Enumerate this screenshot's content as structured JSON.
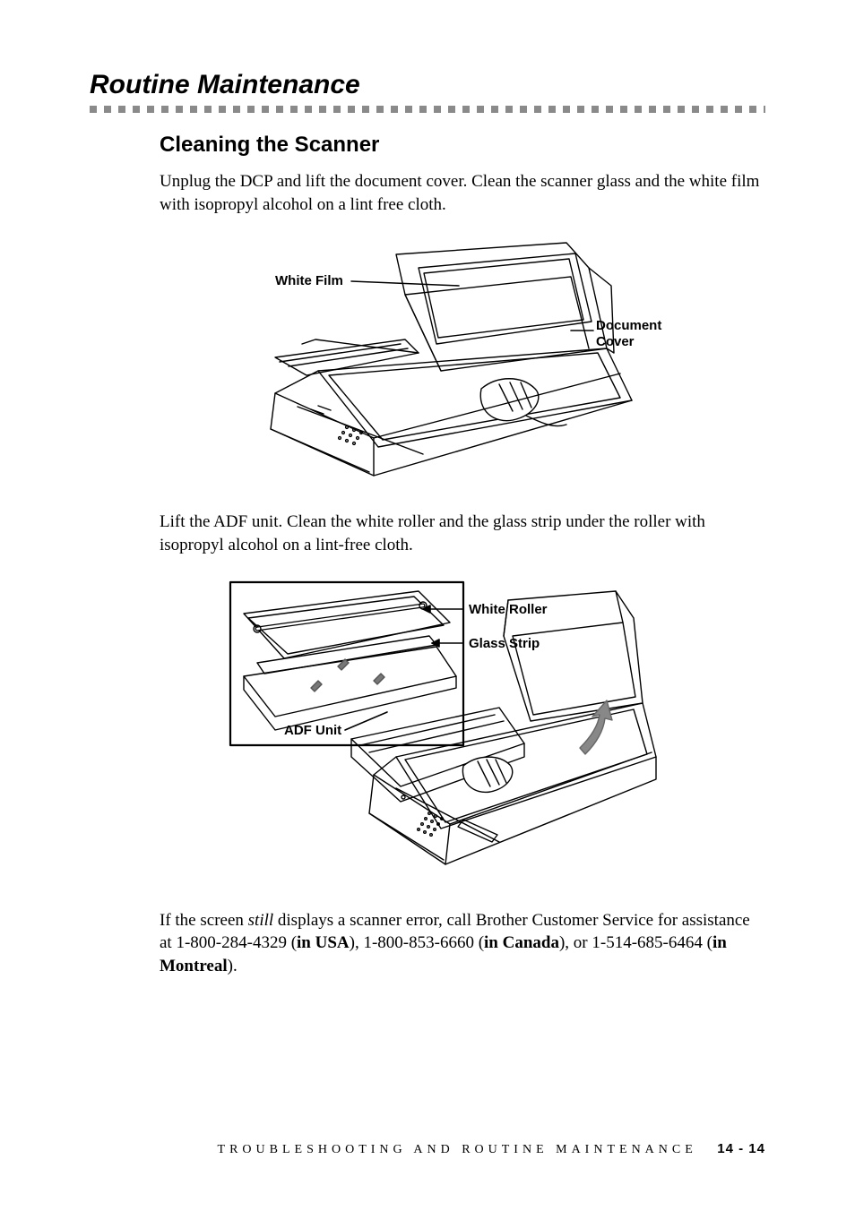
{
  "section_title": "Routine Maintenance",
  "subsection_title": "Cleaning the Scanner",
  "paragraphs": {
    "p1": "Unplug the DCP and lift the document cover. Clean the scanner glass and the white film with isopropyl alcohol on a lint free cloth.",
    "p2": "Lift the ADF unit. Clean the white roller and the glass strip under the roller with isopropyl alcohol on a lint-free cloth.",
    "p3_a": "If the screen ",
    "p3_still": "still",
    "p3_b": " displays a scanner error, call Brother Customer Service for assistance at 1-800-284-4329 (",
    "p3_usa": "in USA",
    "p3_c": "), 1-800-853-6660 (",
    "p3_can": "in Canada",
    "p3_d": "), or 1-514-685-6464 (",
    "p3_mon": "in Montreal",
    "p3_e": ")."
  },
  "figure1": {
    "callouts": {
      "white_film": "White Film",
      "document_cover": "Document\nCover"
    },
    "style": {
      "stroke": "#000000",
      "stroke_width": 1.4,
      "arrow_stroke_width": 1.6,
      "fill": "none",
      "label_fontsize": 15
    }
  },
  "figure2": {
    "callouts": {
      "white_roller": "White Roller",
      "glass_strip": "Glass Strip",
      "adf_unit": "ADF Unit"
    },
    "style": {
      "stroke": "#000000",
      "stroke_width": 1.4,
      "arrow_stroke_width": 1.6,
      "fill": "none",
      "label_fontsize": 15
    }
  },
  "footer": {
    "text": "TROUBLESHOOTING AND ROUTINE MAINTENANCE",
    "page_num": "14 - 14"
  },
  "colors": {
    "text": "#000000",
    "separator": "#8a8a8a",
    "background": "#ffffff"
  },
  "separator": {
    "dash_count": 48
  }
}
